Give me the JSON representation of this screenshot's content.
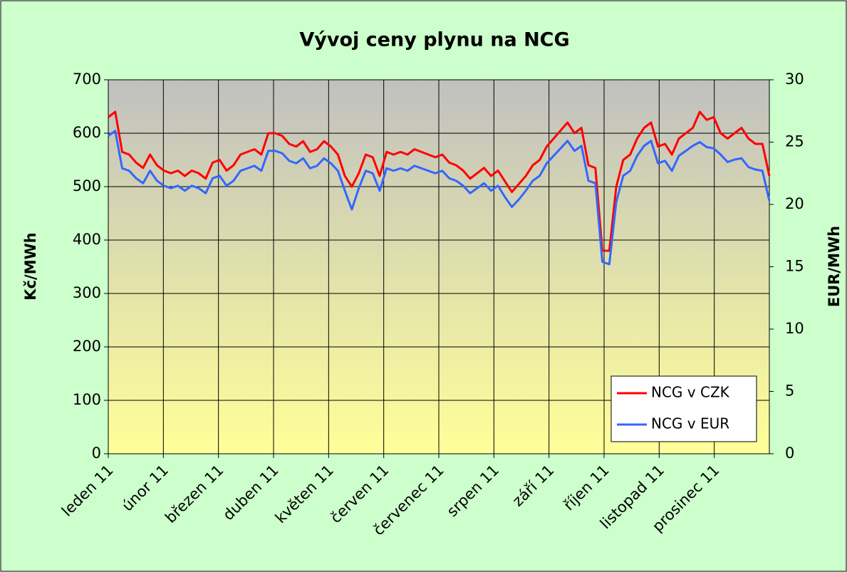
{
  "chart_data": {
    "type": "line",
    "title": "Vývoj ceny plynu na NCG",
    "y_label": "Kč/MWh",
    "y2_label": "EUR/MWh",
    "categories": [
      "leden 11",
      null,
      null,
      null,
      null,
      null,
      null,
      null,
      "únor 11",
      null,
      null,
      null,
      null,
      null,
      null,
      null,
      "březen 11",
      null,
      null,
      null,
      null,
      null,
      null,
      null,
      "duben 11",
      null,
      null,
      null,
      null,
      null,
      null,
      null,
      "květen 11",
      null,
      null,
      null,
      null,
      null,
      null,
      null,
      "červen 11",
      null,
      null,
      null,
      null,
      null,
      null,
      null,
      "červenec 11",
      null,
      null,
      null,
      null,
      null,
      null,
      null,
      "srpen 11",
      null,
      null,
      null,
      null,
      null,
      null,
      null,
      "září 11",
      null,
      null,
      null,
      null,
      null,
      null,
      null,
      "říjen 11",
      null,
      null,
      null,
      null,
      null,
      null,
      null,
      "listopad 11",
      null,
      null,
      null,
      null,
      null,
      null,
      null,
      "prosinec 11",
      null,
      null,
      null,
      null,
      null,
      null,
      null
    ],
    "series": [
      {
        "name": "NCG v CZK",
        "color": "#ff0000",
        "axis": "y",
        "values": [
          630,
          640,
          565,
          560,
          545,
          535,
          560,
          540,
          530,
          525,
          530,
          520,
          530,
          525,
          515,
          545,
          550,
          530,
          540,
          560,
          565,
          570,
          560,
          600,
          600,
          595,
          580,
          575,
          585,
          565,
          570,
          585,
          575,
          560,
          520,
          500,
          525,
          560,
          555,
          520,
          565,
          560,
          565,
          560,
          570,
          565,
          560,
          555,
          560,
          545,
          540,
          530,
          515,
          525,
          535,
          520,
          530,
          510,
          490,
          505,
          520,
          540,
          550,
          575,
          590,
          605,
          620,
          600,
          610,
          540,
          535,
          380,
          380,
          500,
          550,
          560,
          590,
          610,
          620,
          575,
          580,
          560,
          590,
          600,
          610,
          640,
          625,
          630,
          600,
          590,
          600,
          610,
          590,
          580,
          580,
          520
        ]
      },
      {
        "name": "NCG v EUR",
        "color": "#3366ff",
        "axis": "y2",
        "values": [
          25.5,
          25.9,
          22.9,
          22.7,
          22.1,
          21.7,
          22.7,
          21.9,
          21.5,
          21.3,
          21.5,
          21.1,
          21.5,
          21.3,
          20.9,
          22.1,
          22.3,
          21.5,
          21.9,
          22.7,
          22.9,
          23.1,
          22.7,
          24.3,
          24.3,
          24.1,
          23.5,
          23.3,
          23.7,
          22.9,
          23.1,
          23.7,
          23.3,
          22.7,
          21.1,
          19.6,
          21.3,
          22.7,
          22.5,
          21.1,
          22.9,
          22.7,
          22.9,
          22.7,
          23.1,
          22.9,
          22.7,
          22.5,
          22.7,
          22.1,
          21.9,
          21.5,
          20.9,
          21.3,
          21.7,
          21.1,
          21.5,
          20.6,
          19.8,
          20.4,
          21.1,
          21.9,
          22.3,
          23.3,
          23.9,
          24.5,
          25.1,
          24.3,
          24.7,
          21.9,
          21.7,
          15.4,
          15.2,
          20.2,
          22.3,
          22.7,
          23.9,
          24.7,
          25.1,
          23.3,
          23.5,
          22.7,
          23.9,
          24.3,
          24.7,
          25.0,
          24.6,
          24.5,
          24.0,
          23.4,
          23.6,
          23.7,
          23.0,
          22.8,
          22.7,
          20.3
        ]
      }
    ],
    "ylim": [
      0,
      700
    ],
    "yticks": [
      0,
      100,
      200,
      300,
      400,
      500,
      600,
      700
    ],
    "y2lim": [
      0,
      30
    ],
    "y2ticks": [
      0,
      5,
      10,
      15,
      20,
      25,
      30
    ],
    "grid": true,
    "legend": "lower right"
  }
}
